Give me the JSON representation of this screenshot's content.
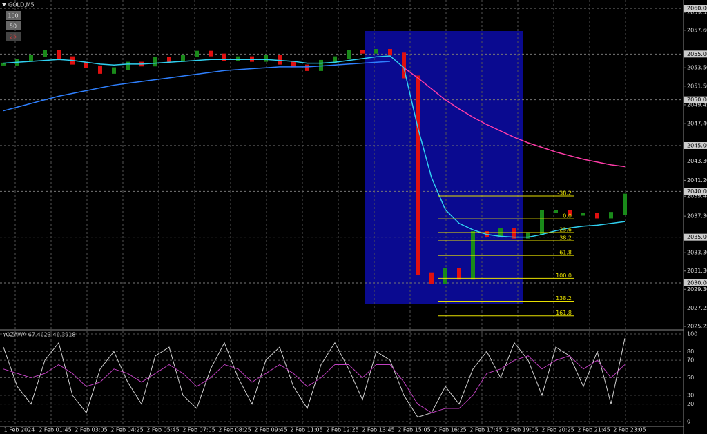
{
  "header": {
    "symbol": "GOLD,M5",
    "buttons": [
      "100",
      "50",
      "25"
    ]
  },
  "chart_data": {
    "type": "line",
    "ylim": [
      2025.25,
      2060.0
    ],
    "yticks": [
      {
        "value": 2060,
        "label": "2060.00",
        "highlight": true
      },
      {
        "value": 2059.55,
        "label": "2059.55"
      },
      {
        "value": 2057.6,
        "label": "2057.60"
      },
      {
        "value": 2055,
        "label": "2055.00",
        "highlight": true
      },
      {
        "value": 2053.5,
        "label": "2053.50"
      },
      {
        "value": 2051.5,
        "label": "2051.50"
      },
      {
        "value": 2050,
        "label": "2050.00",
        "highlight": true
      },
      {
        "value": 2049.45,
        "label": "2049.45"
      },
      {
        "value": 2047.4,
        "label": "2047.40"
      },
      {
        "value": 2045,
        "label": "2045.00",
        "highlight": true
      },
      {
        "value": 2043.3,
        "label": "2043.30"
      },
      {
        "value": 2041.2,
        "label": "2041.20"
      },
      {
        "value": 2040,
        "label": "2040.00",
        "highlight": true
      },
      {
        "value": 2039.48,
        "label": "2039.48"
      },
      {
        "value": 2037.3,
        "label": "2037.30"
      },
      {
        "value": 2035,
        "label": "2035.00",
        "highlight": true
      },
      {
        "value": 2033.3,
        "label": "2033.30"
      },
      {
        "value": 2031.3,
        "label": "2031.30"
      },
      {
        "value": 2030,
        "label": "2030.00",
        "highlight": true
      },
      {
        "value": 2029.3,
        "label": "2029.30"
      },
      {
        "value": 2027.25,
        "label": "2027.25"
      },
      {
        "value": 2025.25,
        "label": "2025.25"
      }
    ],
    "x_labels": [
      "1 Feb 2024",
      "2 Feb 01:45",
      "2 Feb 03:05",
      "2 Feb 04:25",
      "2 Feb 05:45",
      "2 Feb 07:05",
      "2 Feb 08:25",
      "2 Feb 09:45",
      "2 Feb 11:05",
      "2 Feb 12:25",
      "2 Feb 13:45",
      "2 Feb 15:05",
      "2 Feb 16:25",
      "2 Feb 17:45",
      "2 Feb 19:05",
      "2 Feb 20:25",
      "2 Feb 21:45",
      "2 Feb 23:05"
    ],
    "series": [
      {
        "name": "close",
        "color": "#1a8a1a",
        "down_color": "#e01010",
        "values": [
          2053.9,
          2054.3,
          2054.8,
          2055.3,
          2054.6,
          2054.0,
          2053.6,
          2053.0,
          2053.4,
          2054.0,
          2053.8,
          2054.5,
          2054.3,
          2054.8,
          2055.2,
          2054.9,
          2054.4,
          2054.6,
          2054.3,
          2054.8,
          2054.0,
          2053.7,
          2053.3,
          2054.2,
          2054.6,
          2055.3,
          2055.2,
          2055.4,
          2055.0,
          2052.5,
          2031.0,
          2030.0,
          2031.5,
          2030.5,
          2035.5,
          2035.2,
          2035.8,
          2035.0,
          2035.4,
          2037.8,
          2037.8,
          2037.5,
          2037.5,
          2037.2,
          2037.6,
          2039.6
        ]
      },
      {
        "name": "fast",
        "color": "#30d0f0",
        "values": [
          2054.0,
          2054.1,
          2054.2,
          2054.3,
          2054.4,
          2054.3,
          2054.1,
          2053.9,
          2053.8,
          2053.9,
          2053.9,
          2054.0,
          2054.1,
          2054.2,
          2054.3,
          2054.4,
          2054.4,
          2054.4,
          2054.4,
          2054.4,
          2054.3,
          2054.2,
          2054.0,
          2054.0,
          2054.1,
          2054.3,
          2054.5,
          2054.7,
          2054.8,
          2053.5,
          2047.0,
          2041.5,
          2038.0,
          2036.5,
          2035.8,
          2035.3,
          2035.1,
          2035.0,
          2035.0,
          2035.3,
          2035.7,
          2036.0,
          2036.2,
          2036.3,
          2036.5,
          2036.7
        ]
      },
      {
        "name": "slow",
        "color": "#2f80ff",
        "values": [
          2048.8,
          2049.2,
          2049.6,
          2050.0,
          2050.4,
          2050.7,
          2051.0,
          2051.3,
          2051.6,
          2051.8,
          2052.0,
          2052.2,
          2052.4,
          2052.6,
          2052.8,
          2053.0,
          2053.2,
          2053.3,
          2053.4,
          2053.5,
          2053.6,
          2053.6,
          2053.6,
          2053.7,
          2053.8,
          2053.9,
          2054.0,
          2054.1,
          2054.2,
          null,
          null,
          null,
          null,
          null,
          null,
          null,
          null,
          null,
          null,
          null,
          null,
          null,
          null,
          null,
          null,
          null
        ]
      },
      {
        "name": "trend",
        "color": "#ff3ca8",
        "values": [
          null,
          null,
          null,
          null,
          null,
          null,
          null,
          null,
          null,
          null,
          null,
          null,
          null,
          null,
          null,
          null,
          null,
          null,
          null,
          null,
          null,
          null,
          null,
          null,
          null,
          null,
          null,
          null,
          null,
          2053.5,
          2052.4,
          2051.2,
          2050.0,
          2049.0,
          2048.1,
          2047.3,
          2046.6,
          2045.9,
          2045.3,
          2044.8,
          2044.3,
          2043.9,
          2043.5,
          2043.2,
          2042.9,
          2042.7
        ]
      }
    ],
    "fib": {
      "levels": [
        {
          "value": 2039.5,
          "label": "-38.2"
        },
        {
          "value": 2037.0,
          "label": "0.0"
        },
        {
          "value": 2035.5,
          "label": "23.6"
        },
        {
          "value": 2034.6,
          "label": "38.2"
        },
        {
          "value": 2033.0,
          "label": "61.8"
        },
        {
          "value": 2030.5,
          "label": "100.0"
        },
        {
          "value": 2028.0,
          "label": "138.2"
        },
        {
          "value": 2026.4,
          "label": "161.8"
        }
      ],
      "color": "#e8e000"
    }
  },
  "oscillator": {
    "title": "YOZAWA 67.4623 46.3918",
    "ylim": [
      0,
      100
    ],
    "yticks": [
      100,
      80,
      70,
      50,
      30,
      20,
      0
    ],
    "series": [
      {
        "name": "main",
        "color": "#d0d0d0",
        "values": [
          85,
          40,
          20,
          70,
          90,
          30,
          10,
          60,
          80,
          45,
          20,
          75,
          85,
          30,
          15,
          60,
          90,
          50,
          20,
          70,
          85,
          40,
          15,
          65,
          90,
          60,
          25,
          80,
          70,
          30,
          5,
          10,
          40,
          20,
          60,
          80,
          50,
          90,
          70,
          30,
          85,
          75,
          40,
          80,
          20,
          95
        ]
      },
      {
        "name": "signal",
        "color": "#c040c0",
        "values": [
          60,
          55,
          50,
          55,
          65,
          55,
          40,
          45,
          60,
          55,
          45,
          55,
          65,
          55,
          40,
          50,
          65,
          60,
          45,
          55,
          65,
          55,
          40,
          50,
          65,
          65,
          50,
          65,
          65,
          45,
          20,
          10,
          15,
          15,
          30,
          55,
          60,
          70,
          75,
          60,
          70,
          75,
          60,
          70,
          50,
          65
        ]
      }
    ]
  }
}
